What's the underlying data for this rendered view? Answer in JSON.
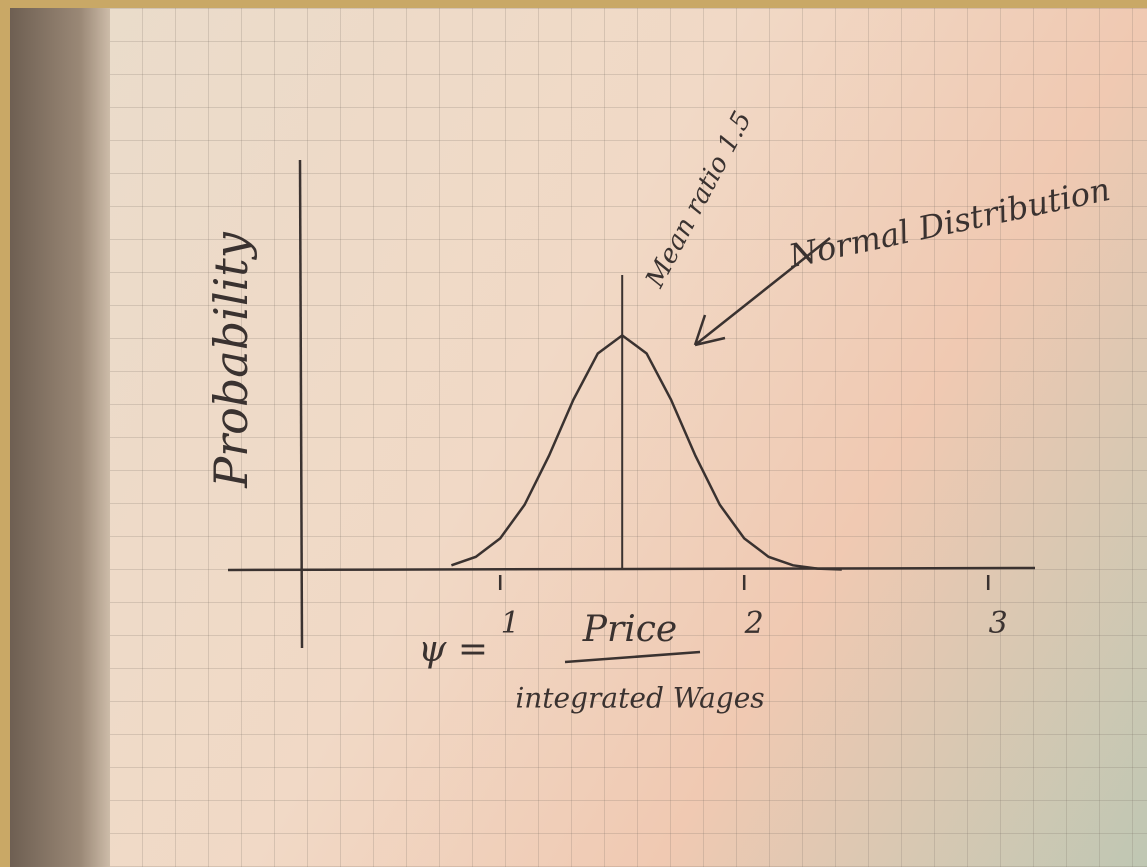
{
  "chart_data": {
    "type": "line",
    "ylabel": "Probability",
    "xlabel": "ψ =",
    "xlabel_numerator": "Price",
    "xlabel_denominator": "integrated Wages",
    "annotations": [
      "Mean ratio 1.5",
      "Normal Distribution"
    ],
    "mean": 1.5,
    "x": [
      0.8,
      0.9,
      1.0,
      1.1,
      1.2,
      1.3,
      1.4,
      1.5,
      1.6,
      1.7,
      1.8,
      1.9,
      2.0,
      2.1,
      2.2,
      2.3,
      2.4
    ],
    "values": [
      0.02,
      0.056,
      0.135,
      0.278,
      0.487,
      0.726,
      0.923,
      1,
      0.923,
      0.726,
      0.487,
      0.278,
      0.135,
      0.056,
      0.02,
      0.006,
      0.002
    ],
    "color": "#3a3230",
    "xlim": [
      0.2,
      3.2
    ],
    "xticks": [
      1,
      2,
      3
    ],
    "ylim": [
      0,
      1.3
    ]
  }
}
